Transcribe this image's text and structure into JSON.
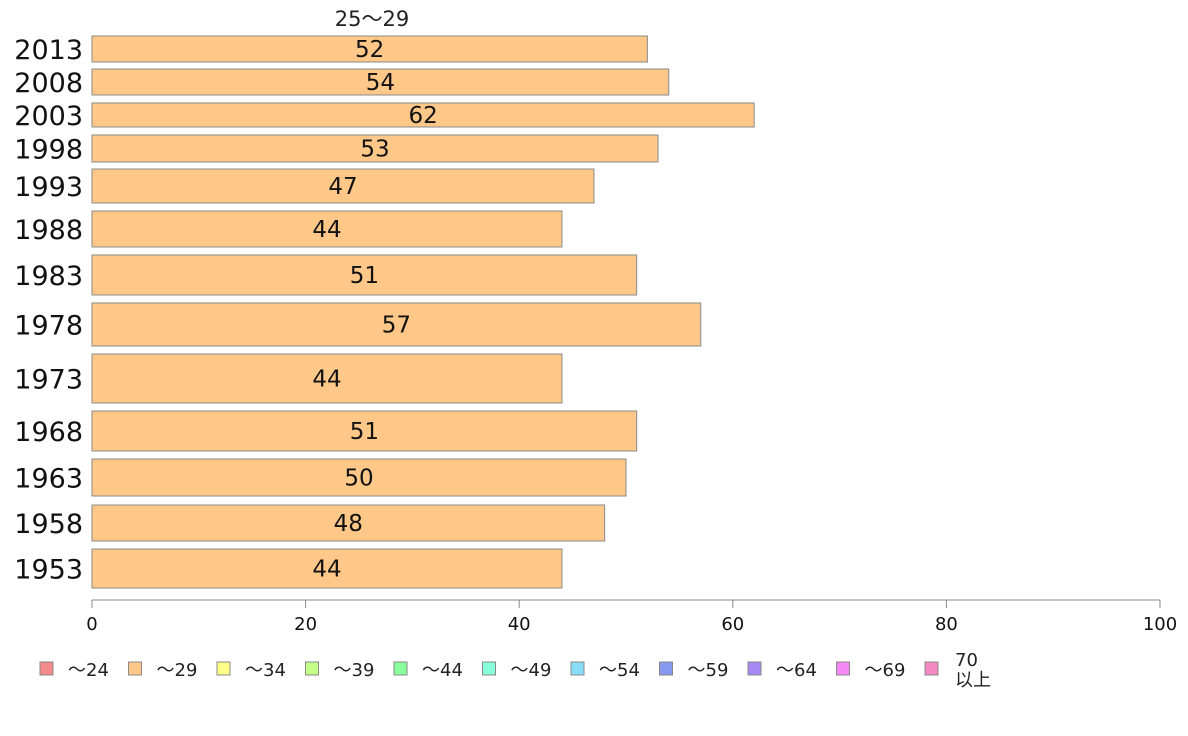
{
  "chart_data": {
    "type": "bar",
    "orientation": "horizontal",
    "series_label": "25〜29",
    "categories": [
      "2013",
      "2008",
      "2003",
      "1998",
      "1993",
      "1988",
      "1983",
      "1978",
      "1973",
      "1968",
      "1963",
      "1958",
      "1953"
    ],
    "series": [
      {
        "name": "〜29",
        "color": "#ffc888",
        "values": [
          52,
          54,
          62,
          53,
          47,
          44,
          51,
          57,
          44,
          51,
          50,
          48,
          44
        ]
      }
    ],
    "value_labels": [
      "52",
      "54",
      "62",
      "53",
      "47",
      "44",
      "51",
      "57",
      "44",
      "51",
      "50",
      "48",
      "44"
    ],
    "xlim": [
      0,
      100
    ],
    "xticks": [
      0,
      20,
      40,
      60,
      80,
      100
    ],
    "grid": false,
    "legend_position": "bottom",
    "legend": [
      {
        "label": "〜24",
        "color": "#f48a8a"
      },
      {
        "label": "〜29",
        "color": "#ffc888"
      },
      {
        "label": "〜34",
        "color": "#ffff88"
      },
      {
        "label": "〜39",
        "color": "#c4ff88"
      },
      {
        "label": "〜44",
        "color": "#88ff9c"
      },
      {
        "label": "〜49",
        "color": "#88ffd8"
      },
      {
        "label": "〜54",
        "color": "#88ddf6"
      },
      {
        "label": "〜59",
        "color": "#8899f0"
      },
      {
        "label": "〜64",
        "color": "#a688f4"
      },
      {
        "label": "〜69",
        "color": "#f488f4"
      },
      {
        "label": "70\n以上",
        "color": "#f488c4"
      }
    ]
  }
}
